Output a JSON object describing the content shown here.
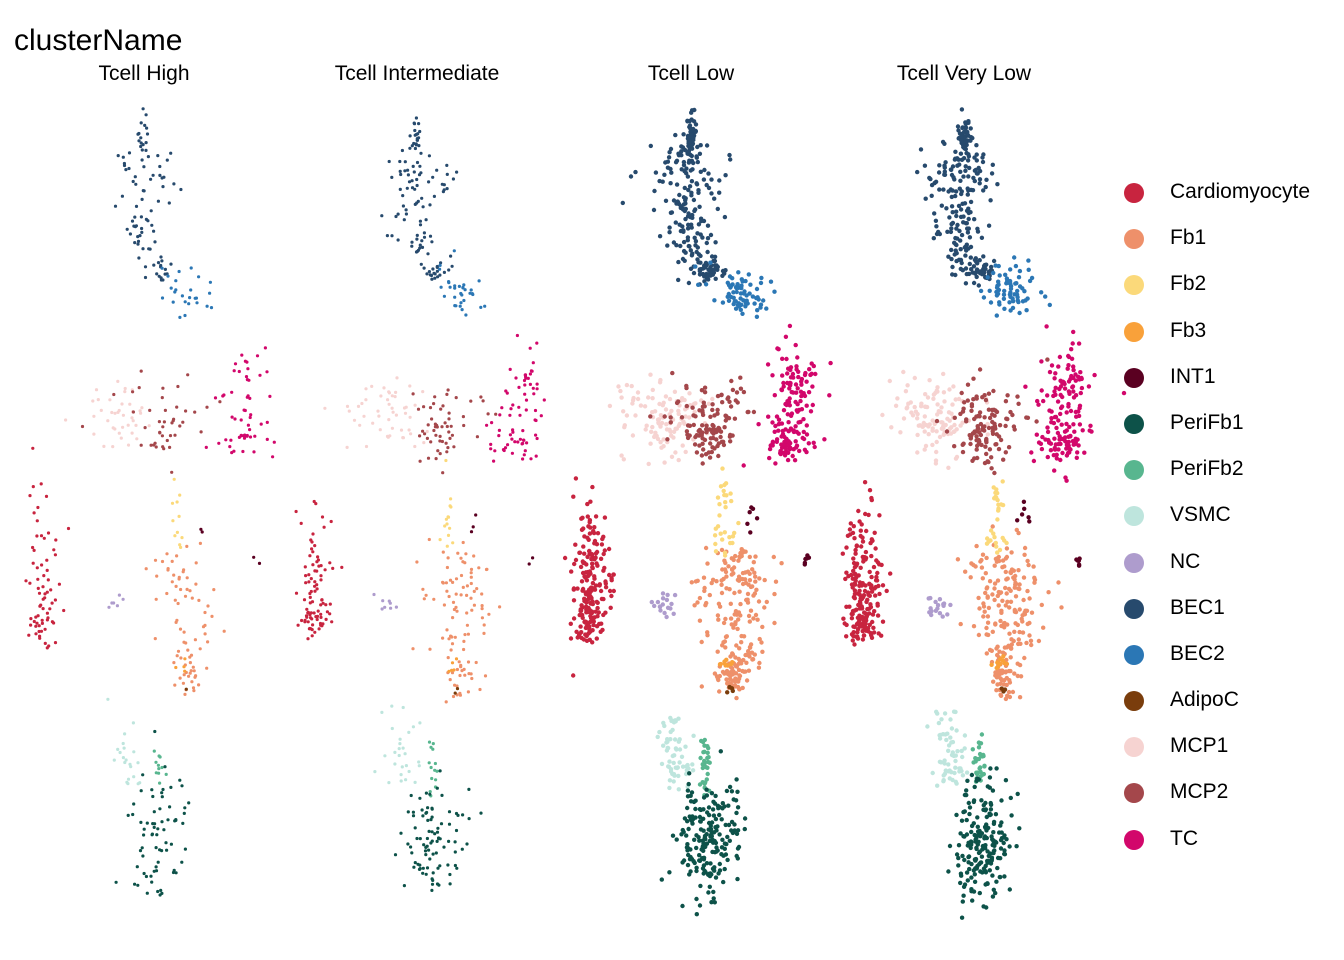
{
  "chart_data": {
    "type": "scatter",
    "title": "clusterName",
    "facets": [
      "Tcell High",
      "Tcell Intermediate",
      "Tcell Low",
      "Tcell Very Low"
    ],
    "axes_visible": false,
    "grid": false,
    "legend_position": "right",
    "clusters": [
      {
        "name": "Cardiomyocyte",
        "color": "#C8243F"
      },
      {
        "name": "Fb1",
        "color": "#EE906A"
      },
      {
        "name": "Fb2",
        "color": "#FBD97A"
      },
      {
        "name": "Fb3",
        "color": "#F9A13A"
      },
      {
        "name": "INT1",
        "color": "#5A0021"
      },
      {
        "name": "PeriFb1",
        "color": "#0D5249"
      },
      {
        "name": "PeriFb2",
        "color": "#58B68F"
      },
      {
        "name": "VSMC",
        "color": "#BEE5DD"
      },
      {
        "name": "NC",
        "color": "#AE9CCD"
      },
      {
        "name": "BEC1",
        "color": "#274A6D"
      },
      {
        "name": "BEC2",
        "color": "#2B77B5"
      },
      {
        "name": "AdipoC",
        "color": "#7A3D0C"
      },
      {
        "name": "MCP1",
        "color": "#F6D3D1"
      },
      {
        "name": "MCP2",
        "color": "#A4474B"
      },
      {
        "name": "TC",
        "color": "#D2076B"
      }
    ],
    "cell_density": {
      "Tcell High": 0.35,
      "Tcell Intermediate": 0.45,
      "Tcell Low": 1.0,
      "Tcell Very Low": 1.0
    }
  }
}
